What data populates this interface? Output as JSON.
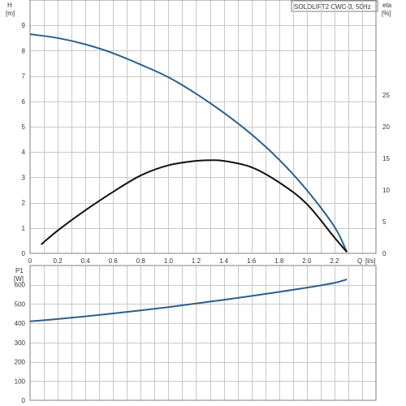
{
  "title": "SOLOLIFT2 CWC-3, 50Hz",
  "colors": {
    "head": "#2b5f8c",
    "efficiency": "#111111",
    "power": "#2b5f8c",
    "grid": "#c8c8c8",
    "frame": "#808080",
    "text": "#333333"
  },
  "chart_data": [
    {
      "type": "line",
      "panel": "head-efficiency",
      "title": "SOLOLIFT2 CWC-3, 50Hz",
      "xlabel": "Q [l/s]",
      "x_unit": "[l/s]",
      "x_axis_label": "Q",
      "y_left_label": "H",
      "y_left_unit": "[m]",
      "y_right_label": "eta",
      "y_right_unit": "[%]",
      "xlim": [
        0,
        2.5
      ],
      "ylim_left": [
        0,
        10
      ],
      "ylim_right": [
        0,
        40
      ],
      "x_ticks": [
        "0",
        "0.2",
        "0.4",
        "0.6",
        "0.8",
        "1.0",
        "1.2",
        "1.4",
        "1.6",
        "1.8",
        "2.0",
        "2.2"
      ],
      "x_tick_values": [
        0,
        0.2,
        0.4,
        0.6,
        0.8,
        1.0,
        1.2,
        1.4,
        1.6,
        1.8,
        2.0,
        2.2
      ],
      "y_left_ticks": [
        "0",
        "1",
        "2",
        "3",
        "4",
        "5",
        "6",
        "7",
        "8",
        "9"
      ],
      "y_left_tick_values": [
        0,
        1,
        2,
        3,
        4,
        5,
        6,
        7,
        8,
        9
      ],
      "y_right_ticks": [
        "0",
        "5",
        "10",
        "15",
        "20",
        "25"
      ],
      "y_right_tick_values": [
        0,
        5,
        10,
        15,
        20,
        25
      ],
      "grid": true,
      "series": [
        {
          "key": "head",
          "axis": "left",
          "x": [
            0,
            0.2,
            0.4,
            0.6,
            0.8,
            1.0,
            1.2,
            1.4,
            1.6,
            1.8,
            2.0,
            2.2,
            2.29
          ],
          "y": [
            8.65,
            8.5,
            8.25,
            7.9,
            7.45,
            6.95,
            6.3,
            5.55,
            4.7,
            3.7,
            2.5,
            1.05,
            0.05
          ]
        },
        {
          "key": "efficiency",
          "axis": "right",
          "x": [
            0.08,
            0.2,
            0.4,
            0.6,
            0.8,
            1.0,
            1.2,
            1.3,
            1.4,
            1.6,
            1.8,
            2.0,
            2.2,
            2.29
          ],
          "y": [
            1.4,
            3.6,
            6.8,
            9.7,
            12.3,
            13.9,
            14.6,
            14.7,
            14.6,
            13.6,
            11.2,
            7.8,
            2.5,
            0.2
          ]
        }
      ]
    },
    {
      "type": "line",
      "panel": "power",
      "y_left_label": "P1",
      "y_left_unit": "[W]",
      "xlim": [
        0,
        2.5
      ],
      "ylim_left": [
        0,
        700
      ],
      "y_left_ticks": [
        "0",
        "100",
        "200",
        "300",
        "400",
        "500",
        "600"
      ],
      "y_left_tick_values": [
        0,
        100,
        200,
        300,
        400,
        500,
        600
      ],
      "grid": true,
      "series": [
        {
          "key": "power",
          "axis": "left",
          "x": [
            0,
            0.2,
            0.4,
            0.6,
            0.8,
            1.0,
            1.2,
            1.4,
            1.6,
            1.8,
            2.0,
            2.2,
            2.29
          ],
          "y": [
            410,
            422,
            436,
            451,
            467,
            484,
            503,
            522,
            542,
            563,
            585,
            610,
            628
          ]
        }
      ]
    }
  ]
}
